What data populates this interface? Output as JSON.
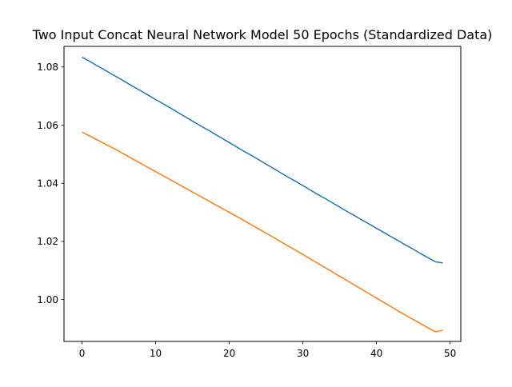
{
  "chart_data": {
    "type": "line",
    "title": "Two Input Concat Neural Network Model 50 Epochs (Standardized Data)",
    "xlabel": "",
    "ylabel": "",
    "xlim": [
      -2.45,
      51.45
    ],
    "ylim": [
      0.9856,
      1.0871
    ],
    "xticks": [
      0,
      10,
      20,
      30,
      40,
      50
    ],
    "yticks": [
      1.0,
      1.02,
      1.04,
      1.06,
      1.08
    ],
    "ytick_decimals": 2,
    "grid": false,
    "legend": "none",
    "series": [
      {
        "color": "#1f77b4",
        "x_start": 0,
        "x_step": 1,
        "values": [
          1.0834,
          1.082,
          1.0805,
          1.0791,
          1.0776,
          1.0762,
          1.0747,
          1.0732,
          1.0718,
          1.0703,
          1.0688,
          1.0674,
          1.0659,
          1.0644,
          1.0629,
          1.0614,
          1.0599,
          1.0585,
          1.057,
          1.0555,
          1.054,
          1.0525,
          1.051,
          1.0496,
          1.0481,
          1.0466,
          1.0451,
          1.0436,
          1.0421,
          1.0407,
          1.0392,
          1.0377,
          1.0362,
          1.0348,
          1.0333,
          1.0318,
          1.0303,
          1.0289,
          1.0274,
          1.026,
          1.0245,
          1.0231,
          1.0216,
          1.0202,
          1.0187,
          1.0173,
          1.0158,
          1.0144,
          1.013,
          1.0126
        ]
      },
      {
        "color": "#ff7f0e",
        "x_start": 0,
        "x_step": 1,
        "values": [
          1.0576,
          1.0563,
          1.055,
          1.0537,
          1.0524,
          1.051,
          1.0496,
          1.0482,
          1.0468,
          1.0454,
          1.044,
          1.0426,
          1.0412,
          1.0398,
          1.0384,
          1.037,
          1.0356,
          1.0342,
          1.0328,
          1.0314,
          1.03,
          1.0286,
          1.0272,
          1.0257,
          1.0243,
          1.0228,
          1.0214,
          1.0199,
          1.0184,
          1.017,
          1.0155,
          1.014,
          1.0125,
          1.011,
          1.0095,
          1.008,
          1.0065,
          1.005,
          1.0035,
          1.002,
          1.0005,
          0.999,
          0.9975,
          0.996,
          0.9945,
          0.9931,
          0.9917,
          0.9903,
          0.9889,
          0.9894
        ]
      }
    ]
  }
}
